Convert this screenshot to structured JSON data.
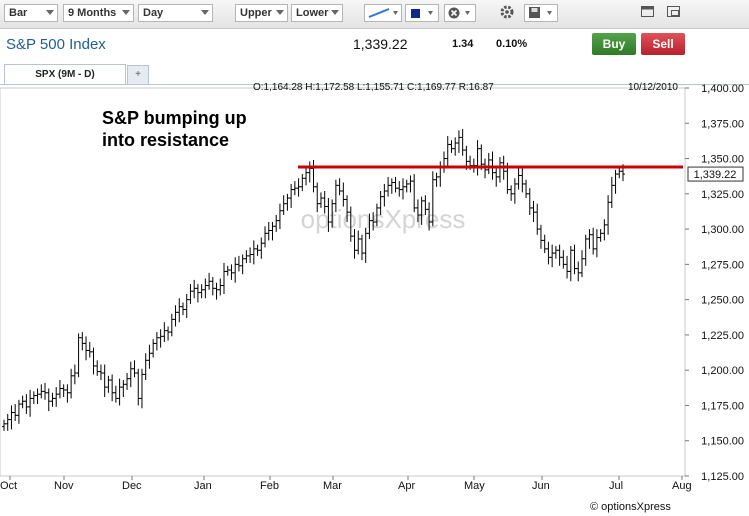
{
  "toolbar": {
    "chart_type": "Bar",
    "period": "9 Months",
    "interval": "Day",
    "upper": "Upper",
    "lower": "Lower",
    "icons": [
      "trendline-icon",
      "color-swatch-icon",
      "delete-icon",
      "settings-icon",
      "save-icon",
      "window-icon",
      "popout-icon"
    ]
  },
  "header": {
    "title": "S&P 500 Index",
    "price": "1,339.22",
    "change": "1.34",
    "change_pct": "0.10%",
    "buy_label": "Buy",
    "sell_label": "Sell"
  },
  "tabs": {
    "active": "SPX (9M - D)",
    "add": "+"
  },
  "colors": {
    "brand_title": "#1f5f94",
    "resistance": "#cc0000",
    "bars": "#000000",
    "buy": "#3a8a31",
    "sell": "#c8303a"
  },
  "chart_data": {
    "type": "bar",
    "ohlc_label": "O:1,164.28  H:1,172.58  L:1,155.71  C:1,169.77  R:16.87",
    "date_label": "10/12/2010",
    "annotation": [
      "S&P bumping up",
      "into resistance"
    ],
    "watermark": "optionsXpress",
    "copyright": "© optionsXpress",
    "current_price_label": "1,339.22",
    "resistance_level": 1344,
    "ylim": [
      1125,
      1400
    ],
    "y_ticks": [
      "1,400.00",
      "1,375.00",
      "1,350.00",
      "1,325.00",
      "1,300.00",
      "1,275.00",
      "1,250.00",
      "1,225.00",
      "1,200.00",
      "1,175.00",
      "1,150.00",
      "1,125.00"
    ],
    "x_ticks": [
      "Oct",
      "Nov",
      "Dec",
      "Jan",
      "Feb",
      "Mar",
      "Apr",
      "May",
      "Jun",
      "Jul",
      "Aug"
    ],
    "closes": [
      1162,
      1165,
      1170,
      1168,
      1176,
      1178,
      1174,
      1180,
      1182,
      1183,
      1185,
      1184,
      1178,
      1180,
      1183,
      1187,
      1186,
      1184,
      1196,
      1198,
      1223,
      1219,
      1214,
      1213,
      1203,
      1199,
      1198,
      1188,
      1193,
      1184,
      1180,
      1188,
      1190,
      1194,
      1201,
      1198,
      1180,
      1197,
      1207,
      1212,
      1219,
      1223,
      1224,
      1228,
      1227,
      1236,
      1241,
      1245,
      1243,
      1250,
      1256,
      1258,
      1255,
      1257,
      1260,
      1263,
      1258,
      1257,
      1260,
      1270,
      1271,
      1269,
      1275,
      1274,
      1279,
      1281,
      1282,
      1286,
      1285,
      1290,
      1297,
      1299,
      1302,
      1306,
      1313,
      1318,
      1322,
      1328,
      1329,
      1330,
      1336,
      1340,
      1343,
      1330,
      1318,
      1322,
      1316,
      1305,
      1318,
      1331,
      1327,
      1321,
      1312,
      1295,
      1285,
      1293,
      1283,
      1297,
      1306,
      1305,
      1315,
      1323,
      1327,
      1331,
      1333,
      1329,
      1328,
      1330,
      1332,
      1334,
      1315,
      1310,
      1320,
      1314,
      1305,
      1335,
      1337,
      1344,
      1350,
      1360,
      1357,
      1361,
      1365,
      1356,
      1348,
      1345,
      1345,
      1357,
      1346,
      1342,
      1349,
      1340,
      1337,
      1347,
      1341,
      1328,
      1325,
      1332,
      1338,
      1332,
      1325,
      1315,
      1312,
      1300,
      1292,
      1286,
      1280,
      1283,
      1285,
      1280,
      1275,
      1270,
      1285,
      1272,
      1269,
      1279,
      1293,
      1296,
      1286,
      1294,
      1297,
      1303,
      1319,
      1331,
      1339,
      1341,
      1339
    ]
  }
}
